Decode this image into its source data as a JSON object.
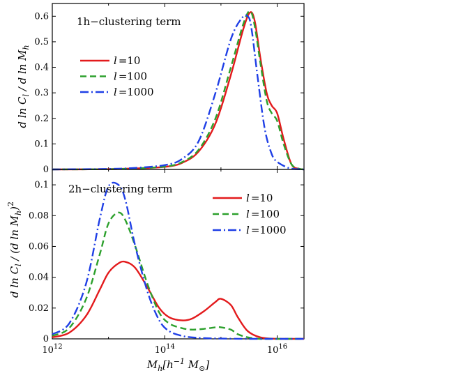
{
  "chart_data": [
    {
      "type": "line",
      "title": "1h−clustering term",
      "ylabel": "d ln C_l / d ln M_h",
      "xscale": "log",
      "xlim": [
        1000000000000.0,
        3e+16
      ],
      "ylim": [
        0,
        0.65
      ],
      "yticks": [
        0,
        0.1,
        0.2,
        0.3,
        0.4,
        0.5,
        0.6
      ],
      "ytick_labels": [
        "0",
        "0.1",
        "0.2",
        "0.3",
        "0.4",
        "0.5",
        "0.6"
      ],
      "legend_position": "left",
      "series": [
        {
          "name": "l =10",
          "label_l": "l",
          "label_val": "=10",
          "color": "#e31a1c",
          "dash": "solid",
          "x": [
            1000000000000.0,
            10000000000000.0,
            30000000000000.0,
            100000000000000.0,
            200000000000000.0,
            400000000000000.0,
            800000000000000.0,
            1500000000000000.0,
            2500000000000000.0,
            3300000000000000.0,
            4000000000000000.0,
            5000000000000000.0,
            6500000000000000.0,
            8000000000000000.0,
            1e+16,
            1.3e+16,
            1.8e+16,
            2.5e+16,
            3e+16
          ],
          "y": [
            0,
            0.001,
            0.004,
            0.01,
            0.025,
            0.07,
            0.18,
            0.37,
            0.55,
            0.615,
            0.58,
            0.44,
            0.3,
            0.25,
            0.22,
            0.12,
            0.02,
            0.002,
            0
          ]
        },
        {
          "name": "l =100",
          "label_l": "l",
          "label_val": "=100",
          "color": "#2ca02c",
          "dash": "dashed",
          "x": [
            1000000000000.0,
            10000000000000.0,
            30000000000000.0,
            100000000000000.0,
            200000000000000.0,
            400000000000000.0,
            800000000000000.0,
            1500000000000000.0,
            2500000000000000.0,
            3300000000000000.0,
            4000000000000000.0,
            5000000000000000.0,
            6500000000000000.0,
            8000000000000000.0,
            1e+16,
            1.3e+16,
            1.8e+16,
            2.5e+16,
            3e+16
          ],
          "y": [
            0,
            0.001,
            0.004,
            0.011,
            0.028,
            0.077,
            0.2,
            0.4,
            0.57,
            0.62,
            0.56,
            0.42,
            0.27,
            0.22,
            0.19,
            0.1,
            0.02,
            0.002,
            0
          ]
        },
        {
          "name": "l =1000",
          "label_l": "l",
          "label_val": "=1000",
          "color": "#1f3fe6",
          "dash": "dashdot",
          "x": [
            1000000000000.0,
            10000000000000.0,
            30000000000000.0,
            100000000000000.0,
            200000000000000.0,
            400000000000000.0,
            800000000000000.0,
            1500000000000000.0,
            2300000000000000.0,
            3000000000000000.0,
            3500000000000000.0,
            4500000000000000.0,
            6000000000000000.0,
            8000000000000000.0,
            1e+16,
            1.5e+16,
            2e+16,
            3e+16
          ],
          "y": [
            0,
            0.002,
            0.006,
            0.017,
            0.04,
            0.11,
            0.3,
            0.51,
            0.59,
            0.6,
            0.55,
            0.36,
            0.16,
            0.06,
            0.03,
            0.008,
            0.002,
            0
          ]
        }
      ]
    },
    {
      "type": "line",
      "title": "2h−clustering term",
      "ylabel": "d ln C_l / (d ln M_h)^2",
      "xlabel": "M_h [h^-1 M_⊙]",
      "xscale": "log",
      "xlim": [
        1000000000000.0,
        3e+16
      ],
      "ylim": [
        0,
        0.11
      ],
      "xticks": [
        1000000000000.0,
        100000000000000.0,
        1e+16
      ],
      "xtick_labels": [
        "10^12",
        "10^14",
        "10^16"
      ],
      "yticks": [
        0,
        0.02,
        0.04,
        0.06,
        0.08,
        0.1
      ],
      "ytick_labels": [
        "0",
        "0.02",
        "0.04",
        "0.06",
        "0.08",
        "0.1"
      ],
      "legend_position": "top-right",
      "series": [
        {
          "name": "l =10",
          "label_l": "l",
          "label_val": "=10",
          "color": "#e31a1c",
          "dash": "solid",
          "x": [
            1000000000000.0,
            2000000000000.0,
            4000000000000.0,
            7000000000000.0,
            10000000000000.0,
            15000000000000.0,
            20000000000000.0,
            30000000000000.0,
            50000000000000.0,
            80000000000000.0,
            120000000000000.0,
            200000000000000.0,
            300000000000000.0,
            500000000000000.0,
            800000000000000.0,
            1000000000000000.0,
            1500000000000000.0,
            2000000000000000.0,
            3000000000000000.0,
            5000000000000000.0,
            1e+16,
            3e+16
          ],
          "y": [
            0.001,
            0.004,
            0.015,
            0.032,
            0.043,
            0.049,
            0.05,
            0.046,
            0.033,
            0.02,
            0.014,
            0.012,
            0.013,
            0.018,
            0.024,
            0.026,
            0.022,
            0.014,
            0.005,
            0.001,
            0,
            0
          ]
        },
        {
          "name": "l =100",
          "label_l": "l",
          "label_val": "=100",
          "color": "#2ca02c",
          "dash": "dashed",
          "x": [
            1000000000000.0,
            2000000000000.0,
            4000000000000.0,
            7000000000000.0,
            10000000000000.0,
            15000000000000.0,
            20000000000000.0,
            30000000000000.0,
            50000000000000.0,
            80000000000000.0,
            120000000000000.0,
            200000000000000.0,
            300000000000000.0,
            500000000000000.0,
            800000000000000.0,
            1000000000000000.0,
            1500000000000000.0,
            2000000000000000.0,
            3000000000000000.0,
            5000000000000000.0,
            1e+16,
            3e+16
          ],
          "y": [
            0.002,
            0.007,
            0.026,
            0.055,
            0.075,
            0.082,
            0.077,
            0.06,
            0.035,
            0.017,
            0.01,
            0.007,
            0.006,
            0.0065,
            0.0075,
            0.0075,
            0.006,
            0.003,
            0.001,
            0,
            0,
            0
          ]
        },
        {
          "name": "l =1000",
          "label_l": "l",
          "label_val": "=1000",
          "color": "#1f3fe6",
          "dash": "dashdot",
          "x": [
            1000000000000.0,
            2000000000000.0,
            4000000000000.0,
            7000000000000.0,
            10000000000000.0,
            15000000000000.0,
            20000000000000.0,
            30000000000000.0,
            50000000000000.0,
            80000000000000.0,
            120000000000000.0,
            200000000000000.0,
            300000000000000.0,
            500000000000000.0,
            1000000000000000.0,
            3000000000000000.0,
            1e+16,
            3e+16
          ],
          "y": [
            0.003,
            0.01,
            0.036,
            0.078,
            0.099,
            0.1,
            0.09,
            0.06,
            0.03,
            0.012,
            0.005,
            0.002,
            0.001,
            0.0005,
            0.0002,
            0,
            0,
            0
          ]
        }
      ]
    }
  ]
}
